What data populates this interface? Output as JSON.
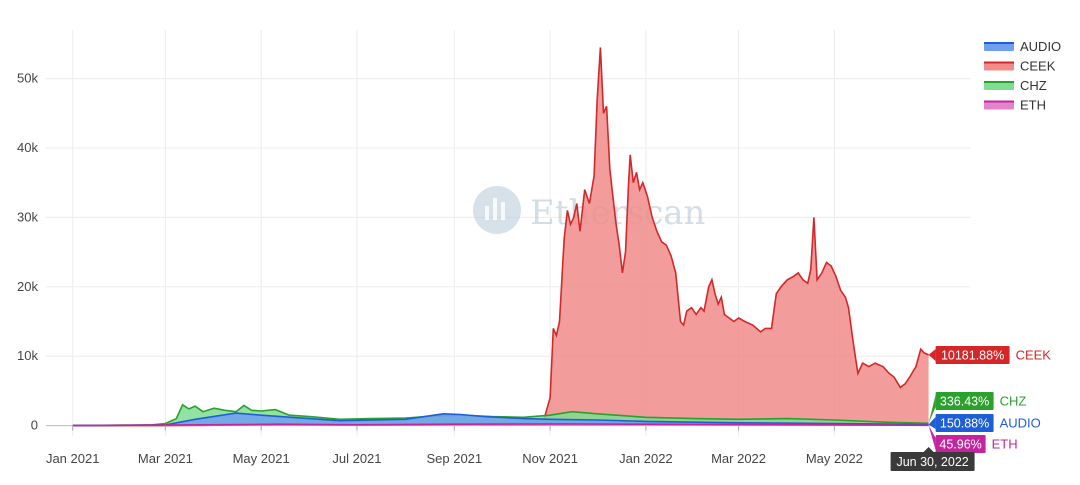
{
  "chart_data": {
    "type": "area",
    "x_axis": {
      "type": "date",
      "range": [
        "2020-12-15",
        "2022-07-20"
      ],
      "ticks": [
        {
          "label": "Jan 2021",
          "date": "2021-01-01"
        },
        {
          "label": "Mar 2021",
          "date": "2021-03-01"
        },
        {
          "label": "May 2021",
          "date": "2021-05-01"
        },
        {
          "label": "Jul 2021",
          "date": "2021-07-01"
        },
        {
          "label": "Sep 2021",
          "date": "2021-09-01"
        },
        {
          "label": "Nov 2021",
          "date": "2021-11-01"
        },
        {
          "label": "Jan 2022",
          "date": "2022-01-01"
        },
        {
          "label": "Mar 2022",
          "date": "2022-03-01"
        },
        {
          "label": "May 2022",
          "date": "2022-05-01"
        }
      ],
      "hover_label": "Jun 30, 2022"
    },
    "y_axis": {
      "range": [
        -1500,
        57000
      ],
      "ticks": [
        {
          "label": "0",
          "value": 0
        },
        {
          "label": "10k",
          "value": 10000
        },
        {
          "label": "20k",
          "value": 20000
        },
        {
          "label": "30k",
          "value": 30000
        },
        {
          "label": "40k",
          "value": 40000
        },
        {
          "label": "50k",
          "value": 50000
        }
      ]
    },
    "grid": true,
    "legend_position": "top-right",
    "series": [
      {
        "name": "CEEK",
        "line_color": "#d62728",
        "fill_color": "#f08c8a",
        "end_label": "10181.88%",
        "points": [
          [
            "2021-01-01",
            0
          ],
          [
            "2021-03-01",
            0
          ],
          [
            "2021-05-01",
            100
          ],
          [
            "2021-07-01",
            200
          ],
          [
            "2021-09-01",
            300
          ],
          [
            "2021-10-20",
            400
          ],
          [
            "2021-10-28",
            800
          ],
          [
            "2021-11-01",
            4000
          ],
          [
            "2021-11-03",
            14000
          ],
          [
            "2021-11-05",
            13000
          ],
          [
            "2021-11-07",
            15000
          ],
          [
            "2021-11-10",
            27000
          ],
          [
            "2021-11-12",
            31000
          ],
          [
            "2021-11-14",
            29000
          ],
          [
            "2021-11-16",
            30000
          ],
          [
            "2021-11-18",
            32000
          ],
          [
            "2021-11-20",
            28000
          ],
          [
            "2021-11-23",
            34000
          ],
          [
            "2021-11-26",
            32000
          ],
          [
            "2021-11-29",
            36000
          ],
          [
            "2021-12-01",
            47000
          ],
          [
            "2021-12-03",
            54500
          ],
          [
            "2021-12-05",
            45000
          ],
          [
            "2021-12-07",
            46000
          ],
          [
            "2021-12-09",
            37000
          ],
          [
            "2021-12-11",
            33000
          ],
          [
            "2021-12-13",
            29000
          ],
          [
            "2021-12-15",
            26000
          ],
          [
            "2021-12-17",
            22000
          ],
          [
            "2021-12-19",
            25000
          ],
          [
            "2021-12-21",
            35000
          ],
          [
            "2021-12-22",
            39000
          ],
          [
            "2021-12-24",
            35000
          ],
          [
            "2021-12-26",
            36500
          ],
          [
            "2021-12-28",
            34000
          ],
          [
            "2021-12-30",
            35000
          ],
          [
            "2022-01-02",
            33000
          ],
          [
            "2022-01-05",
            30000
          ],
          [
            "2022-01-08",
            28000
          ],
          [
            "2022-01-11",
            26500
          ],
          [
            "2022-01-14",
            26000
          ],
          [
            "2022-01-17",
            24500
          ],
          [
            "2022-01-20",
            22000
          ],
          [
            "2022-01-23",
            15000
          ],
          [
            "2022-01-25",
            14500
          ],
          [
            "2022-01-27",
            16500
          ],
          [
            "2022-01-30",
            17000
          ],
          [
            "2022-02-02",
            16000
          ],
          [
            "2022-02-05",
            17000
          ],
          [
            "2022-02-07",
            16500
          ],
          [
            "2022-02-10",
            20000
          ],
          [
            "2022-02-12",
            21000
          ],
          [
            "2022-02-14",
            19000
          ],
          [
            "2022-02-16",
            17500
          ],
          [
            "2022-02-18",
            18500
          ],
          [
            "2022-02-20",
            16000
          ],
          [
            "2022-02-23",
            15500
          ],
          [
            "2022-02-26",
            15000
          ],
          [
            "2022-03-01",
            15500
          ],
          [
            "2022-03-05",
            15000
          ],
          [
            "2022-03-10",
            14500
          ],
          [
            "2022-03-15",
            13500
          ],
          [
            "2022-03-18",
            14000
          ],
          [
            "2022-03-22",
            14000
          ],
          [
            "2022-03-25",
            19000
          ],
          [
            "2022-03-28",
            20000
          ],
          [
            "2022-04-01",
            21000
          ],
          [
            "2022-04-05",
            21500
          ],
          [
            "2022-04-08",
            22000
          ],
          [
            "2022-04-11",
            21000
          ],
          [
            "2022-04-14",
            20500
          ],
          [
            "2022-04-16",
            22500
          ],
          [
            "2022-04-18",
            30000
          ],
          [
            "2022-04-20",
            21000
          ],
          [
            "2022-04-23",
            22000
          ],
          [
            "2022-04-26",
            23500
          ],
          [
            "2022-04-29",
            23000
          ],
          [
            "2022-05-02",
            21500
          ],
          [
            "2022-05-05",
            19500
          ],
          [
            "2022-05-08",
            18500
          ],
          [
            "2022-05-10",
            17000
          ],
          [
            "2022-05-13",
            12000
          ],
          [
            "2022-05-16",
            7500
          ],
          [
            "2022-05-19",
            9000
          ],
          [
            "2022-05-23",
            8500
          ],
          [
            "2022-05-27",
            9000
          ],
          [
            "2022-06-01",
            8500
          ],
          [
            "2022-06-05",
            7500
          ],
          [
            "2022-06-08",
            7000
          ],
          [
            "2022-06-12",
            5500
          ],
          [
            "2022-06-15",
            6000
          ],
          [
            "2022-06-18",
            7000
          ],
          [
            "2022-06-22",
            8500
          ],
          [
            "2022-06-25",
            11000
          ],
          [
            "2022-06-27",
            10500
          ],
          [
            "2022-06-30",
            10181.88
          ]
        ]
      },
      {
        "name": "CHZ",
        "line_color": "#2ca02c",
        "fill_color": "#7fdd91",
        "end_label": "336.43%",
        "points": [
          [
            "2021-01-01",
            0
          ],
          [
            "2021-02-20",
            100
          ],
          [
            "2021-03-01",
            300
          ],
          [
            "2021-03-08",
            1000
          ],
          [
            "2021-03-12",
            3000
          ],
          [
            "2021-03-16",
            2400
          ],
          [
            "2021-03-20",
            2800
          ],
          [
            "2021-03-25",
            2000
          ],
          [
            "2021-04-01",
            2500
          ],
          [
            "2021-04-08",
            2200
          ],
          [
            "2021-04-15",
            2000
          ],
          [
            "2021-04-20",
            2900
          ],
          [
            "2021-04-25",
            2200
          ],
          [
            "2021-05-01",
            2100
          ],
          [
            "2021-05-10",
            2300
          ],
          [
            "2021-05-19",
            1500
          ],
          [
            "2021-06-01",
            1300
          ],
          [
            "2021-06-20",
            900
          ],
          [
            "2021-07-10",
            1000
          ],
          [
            "2021-08-01",
            1100
          ],
          [
            "2021-08-20",
            1400
          ],
          [
            "2021-09-05",
            1500
          ],
          [
            "2021-09-25",
            1300
          ],
          [
            "2021-10-15",
            1200
          ],
          [
            "2021-11-01",
            1500
          ],
          [
            "2021-11-15",
            2000
          ],
          [
            "2021-12-01",
            1700
          ],
          [
            "2022-01-01",
            1200
          ],
          [
            "2022-02-01",
            1000
          ],
          [
            "2022-03-01",
            900
          ],
          [
            "2022-04-01",
            1000
          ],
          [
            "2022-05-01",
            800
          ],
          [
            "2022-06-01",
            500
          ],
          [
            "2022-06-30",
            336.43
          ]
        ]
      },
      {
        "name": "AUDIO",
        "line_color": "#1f5fd6",
        "fill_color": "#6f9ff2",
        "end_label": "150.88%",
        "points": [
          [
            "2021-01-01",
            0
          ],
          [
            "2021-03-01",
            100
          ],
          [
            "2021-03-20",
            900
          ],
          [
            "2021-04-15",
            1800
          ],
          [
            "2021-05-01",
            1500
          ],
          [
            "2021-05-20",
            1200
          ],
          [
            "2021-06-20",
            700
          ],
          [
            "2021-08-01",
            900
          ],
          [
            "2021-08-25",
            1700
          ],
          [
            "2021-09-05",
            1600
          ],
          [
            "2021-09-20",
            1300
          ],
          [
            "2021-10-15",
            1000
          ],
          [
            "2021-11-01",
            900
          ],
          [
            "2021-12-01",
            800
          ],
          [
            "2022-01-01",
            600
          ],
          [
            "2022-03-01",
            400
          ],
          [
            "2022-05-01",
            300
          ],
          [
            "2022-06-30",
            150.88
          ]
        ]
      },
      {
        "name": "ETH",
        "line_color": "#c2259e",
        "fill_color": "#e283cc",
        "end_label": "45.96%",
        "points": [
          [
            "2021-01-01",
            0
          ],
          [
            "2021-03-01",
            80
          ],
          [
            "2021-05-12",
            200
          ],
          [
            "2021-07-01",
            120
          ],
          [
            "2021-09-01",
            200
          ],
          [
            "2021-11-10",
            250
          ],
          [
            "2022-01-01",
            200
          ],
          [
            "2022-03-01",
            150
          ],
          [
            "2022-05-01",
            110
          ],
          [
            "2022-06-30",
            45.96
          ]
        ]
      }
    ]
  },
  "watermark": {
    "text": "Etherscan"
  }
}
